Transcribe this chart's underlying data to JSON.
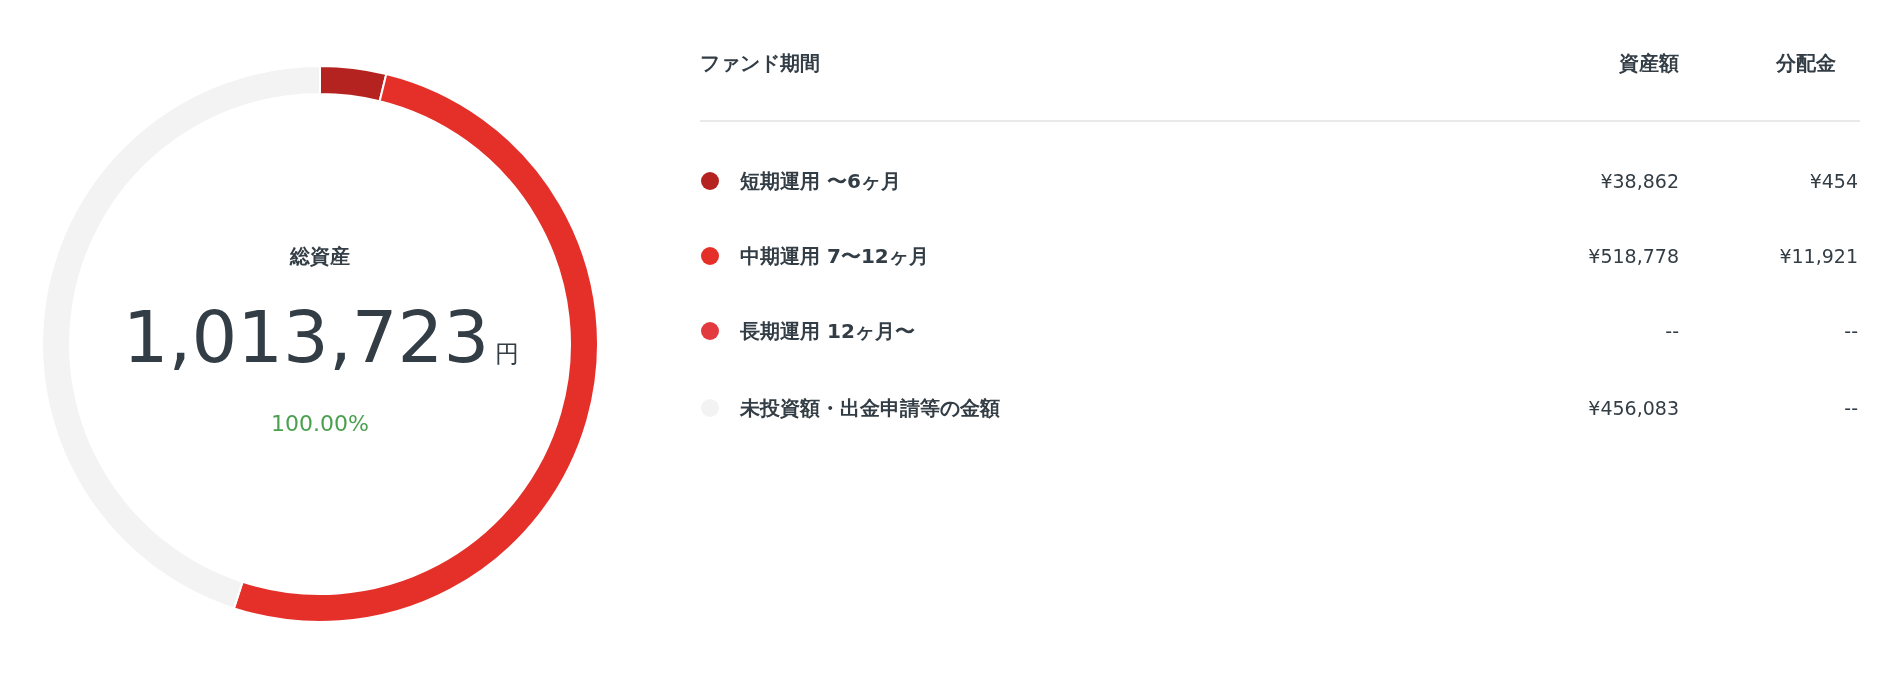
{
  "chart_data": {
    "type": "donut",
    "title": "総資産",
    "legend_title": "ファンド期間",
    "legend": "right",
    "categories": [
      "短期運用 〜6ヶ月",
      "中期運用 7〜12ヶ月",
      "長期運用 12ヶ月〜",
      "未投資額・出金申請等の金額"
    ],
    "values": [
      38862,
      518778,
      null,
      456083
    ],
    "colors": [
      "#b52320",
      "#e5302a",
      "#e33a40",
      "#f3f3f3"
    ],
    "value_labels": [
      "¥38,862",
      "¥518,778",
      "--",
      "¥456,083"
    ],
    "annotations": [
      "1,013,723",
      "円",
      "100.00%",
      "資産額",
      "分配金",
      "¥454",
      "¥11,921",
      "--",
      "--"
    ]
  }
}
